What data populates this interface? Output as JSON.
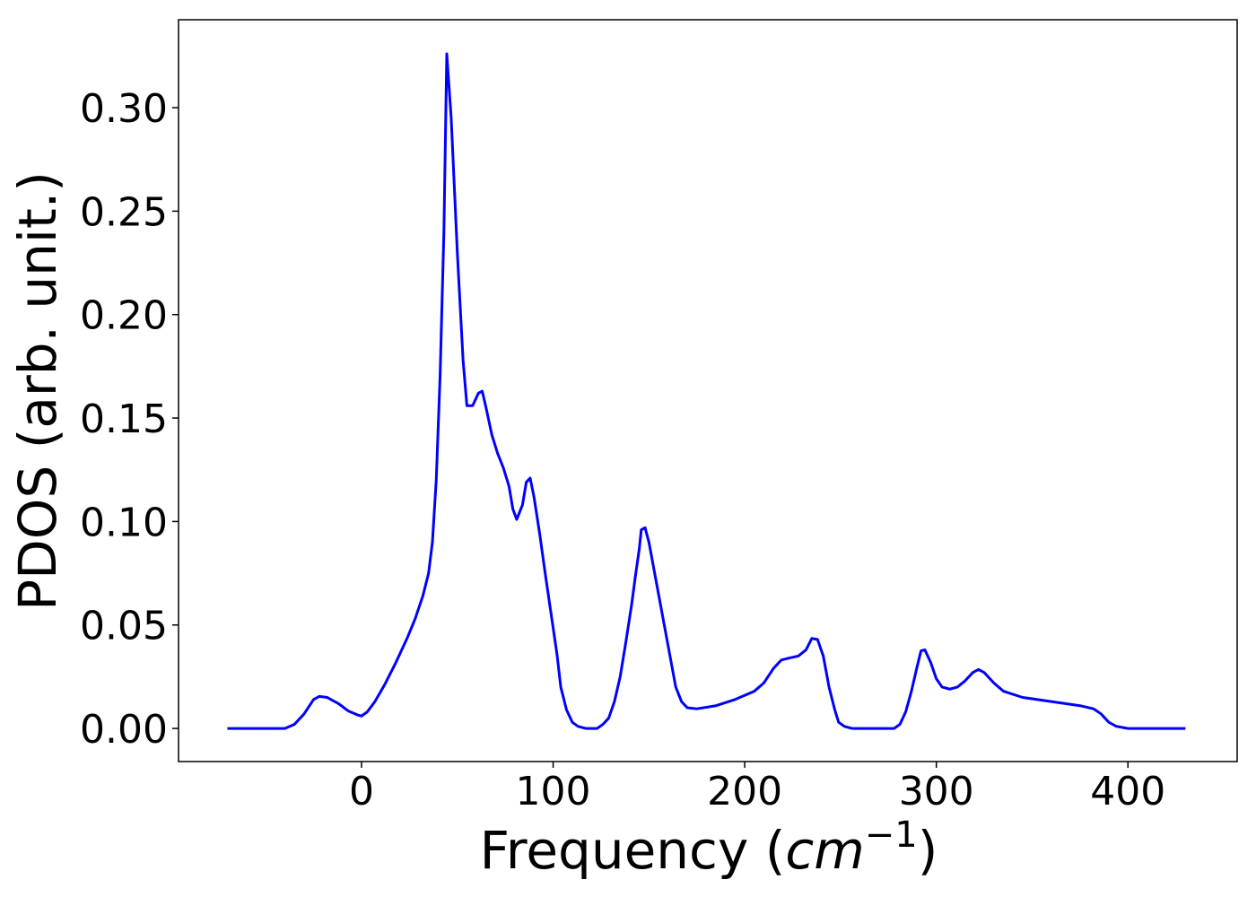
{
  "chart_data": {
    "type": "line",
    "xlabel": [
      "Frequency (",
      "cm",
      "−1",
      ")"
    ],
    "ylabel": "PDOS (arb. unit.)",
    "xlim": [
      -95.5,
      457
    ],
    "ylim": [
      -0.016,
      0.3425
    ],
    "xticks": [
      0,
      100,
      200,
      300,
      400
    ],
    "yticks": [
      {
        "value": 0,
        "label": "0.00"
      },
      {
        "value": 0.05,
        "label": "0.05"
      },
      {
        "value": 0.1,
        "label": "0.10"
      },
      {
        "value": 0.15,
        "label": "0.15"
      },
      {
        "value": 0.2,
        "label": "0.20"
      },
      {
        "value": 0.25,
        "label": "0.25"
      },
      {
        "value": 0.3,
        "label": "0.30"
      }
    ],
    "grid": false,
    "x": [
      -70,
      -40,
      -35,
      -30,
      -25,
      -22,
      -18,
      -12,
      -7,
      -2,
      0,
      3,
      7,
      12,
      18,
      24,
      28,
      32,
      35,
      37,
      39,
      41,
      43,
      44.5,
      46.8,
      50,
      53,
      55,
      58,
      61,
      63,
      65,
      68,
      71,
      74,
      77,
      79,
      81,
      84,
      86,
      88,
      90,
      93,
      96,
      99,
      102,
      104,
      107,
      110,
      113,
      117,
      123,
      126,
      129,
      132,
      135,
      138,
      141,
      143,
      145,
      146,
      148,
      150,
      153,
      156,
      159,
      162,
      164,
      167,
      170,
      175,
      185,
      195,
      205,
      210,
      215,
      219,
      223,
      228,
      232,
      235,
      238,
      241,
      244,
      247,
      249,
      252,
      256,
      278,
      281,
      284,
      287,
      290,
      292,
      294,
      297,
      300,
      303,
      307,
      311,
      315,
      319,
      322,
      325,
      330,
      335,
      345,
      360,
      375,
      382,
      386,
      390,
      394,
      400,
      430
    ],
    "series": [
      {
        "color": "#0000ff",
        "values": [
          0,
          0,
          0.002,
          0.007,
          0.014,
          0.0155,
          0.015,
          0.012,
          0.0085,
          0.0065,
          0.006,
          0.008,
          0.013,
          0.021,
          0.032,
          0.044,
          0.053,
          0.064,
          0.075,
          0.09,
          0.12,
          0.17,
          0.24,
          0.326,
          0.295,
          0.23,
          0.178,
          0.156,
          0.156,
          0.162,
          0.163,
          0.155,
          0.142,
          0.133,
          0.126,
          0.117,
          0.106,
          0.101,
          0.108,
          0.119,
          0.121,
          0.112,
          0.094,
          0.074,
          0.055,
          0.036,
          0.02,
          0.009,
          0.003,
          0.001,
          0,
          0,
          0.002,
          0.005,
          0.013,
          0.025,
          0.042,
          0.06,
          0.074,
          0.087,
          0.096,
          0.097,
          0.09,
          0.075,
          0.06,
          0.045,
          0.03,
          0.02,
          0.013,
          0.01,
          0.0095,
          0.011,
          0.014,
          0.018,
          0.022,
          0.029,
          0.033,
          0.034,
          0.035,
          0.038,
          0.0435,
          0.043,
          0.035,
          0.02,
          0.009,
          0.003,
          0.001,
          0,
          0,
          0.002,
          0.008,
          0.018,
          0.03,
          0.0375,
          0.038,
          0.032,
          0.024,
          0.02,
          0.019,
          0.02,
          0.023,
          0.027,
          0.0285,
          0.027,
          0.022,
          0.018,
          0.015,
          0.013,
          0.011,
          0.0095,
          0.007,
          0.003,
          0.001,
          0,
          0
        ]
      }
    ]
  }
}
